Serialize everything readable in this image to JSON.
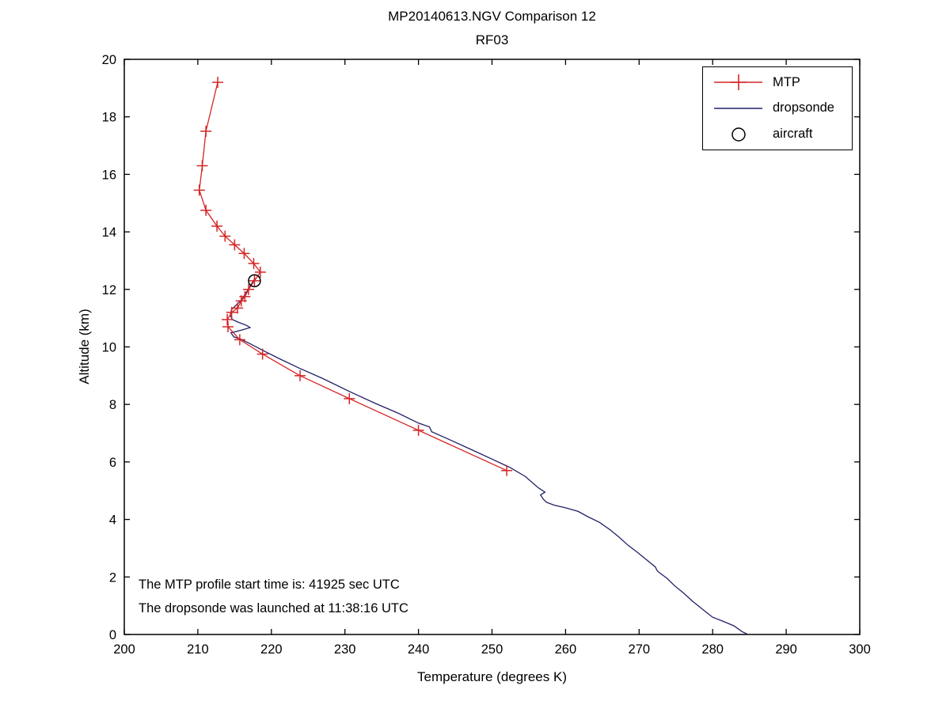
{
  "figure": {
    "title_line1": "MP20140613.NGV Comparison 12",
    "title_line2": "RF03",
    "xlabel": "Temperature (degrees K)",
    "ylabel": "Altitude (km)",
    "annotations": {
      "line1": "The MTP profile start time is: 41925 sec UTC",
      "line2": "The dropsonde was launched at 11:38:16 UTC"
    }
  },
  "legend": {
    "items": [
      {
        "label": "MTP",
        "style": "line-plus",
        "color": "#d42525"
      },
      {
        "label": "dropsonde",
        "style": "line",
        "color": "#202068"
      },
      {
        "label": "aircraft",
        "style": "circle",
        "color": "#000000"
      }
    ]
  },
  "chart_data": {
    "type": "line",
    "title": "MP20140613.NGV Comparison 12 RF03",
    "xlabel": "Temperature (degrees K)",
    "ylabel": "Altitude (km)",
    "xlim": [
      200,
      300
    ],
    "ylim": [
      0,
      20
    ],
    "xticks": [
      200,
      210,
      220,
      230,
      240,
      250,
      260,
      270,
      280,
      290,
      300
    ],
    "yticks": [
      0,
      2,
      4,
      6,
      8,
      10,
      12,
      14,
      16,
      18,
      20
    ],
    "grid": false,
    "legend_position": "upper right",
    "series": [
      {
        "name": "dropsonde",
        "color": "#202068",
        "marker": "none",
        "points": [
          [
            217.8,
            12.4
          ],
          [
            217.2,
            12.15
          ],
          [
            216.6,
            11.9
          ],
          [
            216.0,
            11.65
          ],
          [
            215.2,
            11.45
          ],
          [
            214.6,
            11.3
          ],
          [
            214.4,
            11.1
          ],
          [
            214.7,
            10.95
          ],
          [
            215.6,
            10.85
          ],
          [
            216.6,
            10.75
          ],
          [
            217.1,
            10.67
          ],
          [
            215.9,
            10.58
          ],
          [
            214.5,
            10.49
          ],
          [
            214.9,
            10.35
          ],
          [
            215.9,
            10.26
          ],
          [
            217.2,
            10.1
          ],
          [
            218.9,
            9.87
          ],
          [
            221.0,
            9.6
          ],
          [
            223.9,
            9.25
          ],
          [
            227.0,
            8.9
          ],
          [
            230.6,
            8.45
          ],
          [
            234.0,
            8.05
          ],
          [
            237.2,
            7.7
          ],
          [
            240.0,
            7.35
          ],
          [
            241.5,
            7.22
          ],
          [
            241.8,
            7.05
          ],
          [
            244.0,
            6.8
          ],
          [
            247.0,
            6.45
          ],
          [
            250.0,
            6.1
          ],
          [
            252.5,
            5.8
          ],
          [
            254.5,
            5.5
          ],
          [
            256.3,
            5.1
          ],
          [
            257.2,
            4.95
          ],
          [
            256.6,
            4.85
          ],
          [
            257.0,
            4.7
          ],
          [
            257.4,
            4.6
          ],
          [
            258.4,
            4.5
          ],
          [
            260.1,
            4.4
          ],
          [
            261.7,
            4.28
          ],
          [
            263.0,
            4.1
          ],
          [
            264.6,
            3.9
          ],
          [
            266.0,
            3.65
          ],
          [
            267.2,
            3.4
          ],
          [
            268.5,
            3.1
          ],
          [
            269.8,
            2.85
          ],
          [
            271.0,
            2.6
          ],
          [
            272.2,
            2.35
          ],
          [
            272.5,
            2.2
          ],
          [
            273.8,
            1.95
          ],
          [
            274.8,
            1.7
          ],
          [
            276.0,
            1.45
          ],
          [
            277.3,
            1.15
          ],
          [
            278.5,
            0.9
          ],
          [
            280.0,
            0.6
          ],
          [
            281.5,
            0.45
          ],
          [
            282.9,
            0.3
          ],
          [
            284.0,
            0.1
          ],
          [
            284.8,
            0.0
          ]
        ]
      },
      {
        "name": "MTP",
        "color": "#d42525",
        "marker": "plus",
        "points": [
          [
            212.7,
            19.2
          ],
          [
            211.1,
            17.5
          ],
          [
            210.6,
            16.3
          ],
          [
            210.2,
            15.45
          ],
          [
            211.1,
            14.75
          ],
          [
            212.6,
            14.2
          ],
          [
            213.7,
            13.85
          ],
          [
            215.0,
            13.55
          ],
          [
            216.3,
            13.25
          ],
          [
            217.6,
            12.9
          ],
          [
            218.5,
            12.6
          ],
          [
            217.7,
            12.3
          ],
          [
            216.9,
            12.0
          ],
          [
            216.4,
            11.75
          ],
          [
            215.9,
            11.6
          ],
          [
            215.4,
            11.35
          ],
          [
            214.6,
            11.2
          ],
          [
            214.0,
            10.95
          ],
          [
            214.1,
            10.7
          ],
          [
            215.7,
            10.25
          ],
          [
            218.8,
            9.75
          ],
          [
            223.9,
            9.0
          ],
          [
            230.6,
            8.2
          ],
          [
            240.0,
            7.1
          ],
          [
            252.0,
            5.7
          ]
        ]
      },
      {
        "name": "aircraft",
        "color": "#000000",
        "marker": "circle",
        "points": [
          [
            217.7,
            12.3
          ]
        ]
      }
    ]
  }
}
